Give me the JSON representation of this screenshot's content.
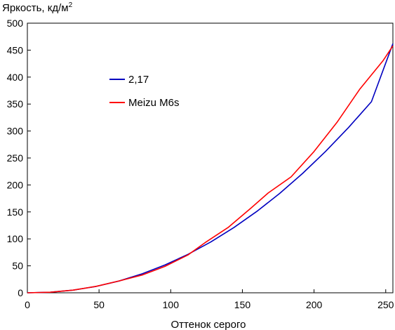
{
  "chart_data": {
    "type": "line",
    "title": "",
    "ylabel": "Яркость, кд/м",
    "ylabel_superscript": "2",
    "xlabel": "Оттенок серого",
    "xlim": [
      0,
      255
    ],
    "ylim": [
      0,
      500
    ],
    "xticks": [
      0,
      50,
      100,
      150,
      200,
      250
    ],
    "yticks": [
      0,
      50,
      100,
      150,
      200,
      250,
      300,
      350,
      400,
      450,
      500
    ],
    "grid": false,
    "legend_position": "upper-left",
    "series": [
      {
        "name": "2,17",
        "color": "#0000c0",
        "x": [
          0,
          16,
          32,
          48,
          64,
          80,
          96,
          112,
          128,
          144,
          160,
          176,
          192,
          208,
          224,
          240,
          255
        ],
        "y": [
          0,
          1.1,
          5.0,
          11.9,
          21.9,
          35.1,
          51.5,
          71.2,
          94.3,
          120.8,
          150.8,
          184.3,
          221.4,
          262.1,
          306.4,
          354.3,
          462
        ]
      },
      {
        "name": "Meizu M6s",
        "color": "#ff0000",
        "x": [
          0,
          16,
          24,
          32,
          48,
          64,
          80,
          96,
          112,
          124,
          140,
          156,
          168,
          184,
          200,
          216,
          232,
          248,
          255
        ],
        "y": [
          0,
          1,
          3,
          5,
          12,
          22,
          33,
          49,
          70,
          93,
          121,
          157,
          185,
          215,
          262,
          316,
          378,
          430,
          458
        ]
      }
    ]
  }
}
